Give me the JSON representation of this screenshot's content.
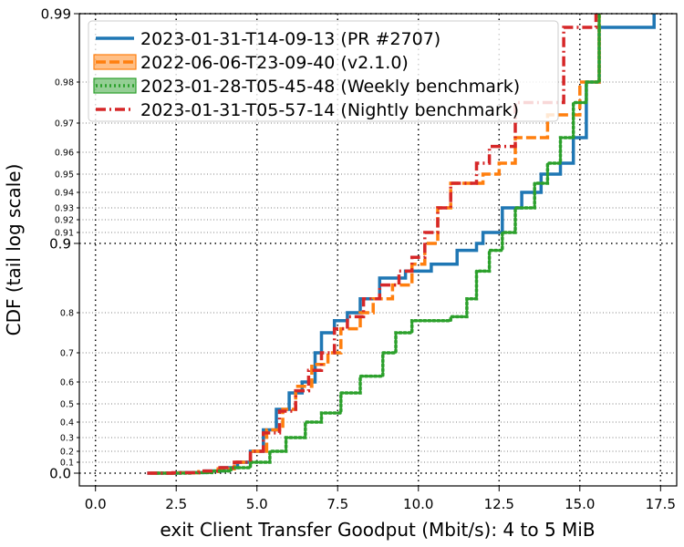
{
  "chart_data": {
    "type": "line",
    "xlabel": "exit Client Transfer Goodput (Mbit/s): 4 to 5 MiB",
    "ylabel": "CDF (tail log scale)",
    "xlim": [
      -0.5,
      18.0
    ],
    "x_ticks": [
      0.0,
      2.5,
      5.0,
      7.5,
      10.0,
      12.5,
      15.0,
      17.5
    ],
    "x_tick_labels": [
      "0.0",
      "2.5",
      "5.0",
      "7.5",
      "10.0",
      "12.5",
      "15.0",
      "17.5"
    ],
    "y_scale": "tail-log (cdf ticks 0.0-0.9 linear-ish, 0.9-0.99 log-tail)",
    "y_ticks": [
      {
        "value": 0.0,
        "label": "0.0",
        "major": true
      },
      {
        "value": 0.1,
        "label": "0.1",
        "major": false
      },
      {
        "value": 0.2,
        "label": "0.2",
        "major": false
      },
      {
        "value": 0.3,
        "label": "0.3",
        "major": false
      },
      {
        "value": 0.4,
        "label": "0.4",
        "major": false
      },
      {
        "value": 0.5,
        "label": "0.5",
        "major": false
      },
      {
        "value": 0.6,
        "label": "0.6",
        "major": false
      },
      {
        "value": 0.7,
        "label": "0.7",
        "major": false
      },
      {
        "value": 0.8,
        "label": "0.8",
        "major": false
      },
      {
        "value": 0.9,
        "label": "0.9",
        "major": true
      },
      {
        "value": 0.91,
        "label": "0.91",
        "major": false
      },
      {
        "value": 0.92,
        "label": "0.92",
        "major": false
      },
      {
        "value": 0.93,
        "label": "0.93",
        "major": false
      },
      {
        "value": 0.94,
        "label": "0.94",
        "major": false
      },
      {
        "value": 0.95,
        "label": "0.95",
        "major": false
      },
      {
        "value": 0.96,
        "label": "0.96",
        "major": false
      },
      {
        "value": 0.97,
        "label": "0.97",
        "major": false
      },
      {
        "value": 0.98,
        "label": "0.98",
        "major": false
      },
      {
        "value": 0.99,
        "label": "0.99",
        "major": true
      }
    ],
    "grid": true,
    "legend_position": "top-left",
    "series": [
      {
        "name": "2023-01-31-T14-09-13 (PR #2707)",
        "color": "#1f77b4",
        "dash": "solid",
        "points": [
          [
            1.6,
            0.0
          ],
          [
            2.6,
            0.005
          ],
          [
            3.4,
            0.02
          ],
          [
            3.9,
            0.05
          ],
          [
            4.4,
            0.1
          ],
          [
            4.8,
            0.2
          ],
          [
            5.2,
            0.35
          ],
          [
            5.6,
            0.47
          ],
          [
            6.0,
            0.55
          ],
          [
            6.4,
            0.6
          ],
          [
            6.8,
            0.7
          ],
          [
            7.0,
            0.75
          ],
          [
            7.4,
            0.78
          ],
          [
            7.8,
            0.8
          ],
          [
            8.2,
            0.82
          ],
          [
            8.8,
            0.85
          ],
          [
            9.6,
            0.86
          ],
          [
            10.4,
            0.87
          ],
          [
            11.2,
            0.89
          ],
          [
            11.8,
            0.9
          ],
          [
            12.0,
            0.91
          ],
          [
            12.6,
            0.93
          ],
          [
            13.2,
            0.94
          ],
          [
            13.8,
            0.95
          ],
          [
            14.4,
            0.955
          ],
          [
            14.8,
            0.965
          ],
          [
            15.2,
            0.98
          ],
          [
            15.6,
            0.988
          ],
          [
            17.3,
            0.99
          ]
        ]
      },
      {
        "name": "2022-06-06-T23-09-40 (v2.1.0)",
        "color": "#ff7f0e",
        "dash": "dashed",
        "points": [
          [
            1.7,
            0.0
          ],
          [
            2.5,
            0.003
          ],
          [
            3.2,
            0.015
          ],
          [
            3.8,
            0.04
          ],
          [
            4.3,
            0.1
          ],
          [
            4.8,
            0.2
          ],
          [
            5.3,
            0.35
          ],
          [
            5.8,
            0.47
          ],
          [
            6.2,
            0.58
          ],
          [
            6.7,
            0.66
          ],
          [
            7.2,
            0.7
          ],
          [
            7.6,
            0.76
          ],
          [
            8.2,
            0.8
          ],
          [
            8.6,
            0.82
          ],
          [
            9.2,
            0.84
          ],
          [
            9.8,
            0.87
          ],
          [
            10.2,
            0.9
          ],
          [
            10.6,
            0.93
          ],
          [
            11.0,
            0.945
          ],
          [
            12.0,
            0.95
          ],
          [
            12.5,
            0.955
          ],
          [
            13.0,
            0.965
          ],
          [
            14.0,
            0.972
          ],
          [
            15.0,
            0.98
          ],
          [
            15.6,
            0.99
          ]
        ]
      },
      {
        "name": "2023-01-28-T05-45-48 (Weekly benchmark)",
        "color": "#2ca02c",
        "dash": "dotted",
        "points": [
          [
            1.9,
            0.0
          ],
          [
            3.0,
            0.005
          ],
          [
            3.6,
            0.02
          ],
          [
            4.2,
            0.05
          ],
          [
            4.8,
            0.1
          ],
          [
            5.4,
            0.2
          ],
          [
            5.9,
            0.3
          ],
          [
            6.5,
            0.4
          ],
          [
            7.0,
            0.45
          ],
          [
            7.6,
            0.55
          ],
          [
            8.2,
            0.62
          ],
          [
            8.9,
            0.7
          ],
          [
            9.3,
            0.75
          ],
          [
            9.8,
            0.78
          ],
          [
            11.0,
            0.79
          ],
          [
            11.5,
            0.82
          ],
          [
            11.8,
            0.86
          ],
          [
            12.2,
            0.89
          ],
          [
            12.6,
            0.91
          ],
          [
            13.0,
            0.93
          ],
          [
            13.6,
            0.945
          ],
          [
            14.0,
            0.955
          ],
          [
            14.4,
            0.965
          ],
          [
            14.8,
            0.975
          ],
          [
            15.2,
            0.98
          ],
          [
            15.6,
            0.99
          ]
        ]
      },
      {
        "name": "2023-01-31-T05-57-14 (Nightly benchmark)",
        "color": "#d62728",
        "dash": "dashdot",
        "points": [
          [
            1.6,
            0.0
          ],
          [
            2.4,
            0.004
          ],
          [
            3.2,
            0.02
          ],
          [
            3.8,
            0.05
          ],
          [
            4.3,
            0.1
          ],
          [
            4.8,
            0.2
          ],
          [
            5.2,
            0.33
          ],
          [
            5.7,
            0.46
          ],
          [
            6.2,
            0.56
          ],
          [
            6.6,
            0.64
          ],
          [
            7.0,
            0.7
          ],
          [
            7.4,
            0.76
          ],
          [
            7.8,
            0.79
          ],
          [
            8.3,
            0.82
          ],
          [
            8.8,
            0.84
          ],
          [
            9.4,
            0.86
          ],
          [
            9.8,
            0.88
          ],
          [
            10.2,
            0.91
          ],
          [
            10.6,
            0.93
          ],
          [
            11.0,
            0.945
          ],
          [
            11.8,
            0.955
          ],
          [
            12.2,
            0.962
          ],
          [
            13.0,
            0.975
          ],
          [
            14.5,
            0.988
          ],
          [
            15.5,
            0.99
          ]
        ]
      }
    ]
  }
}
